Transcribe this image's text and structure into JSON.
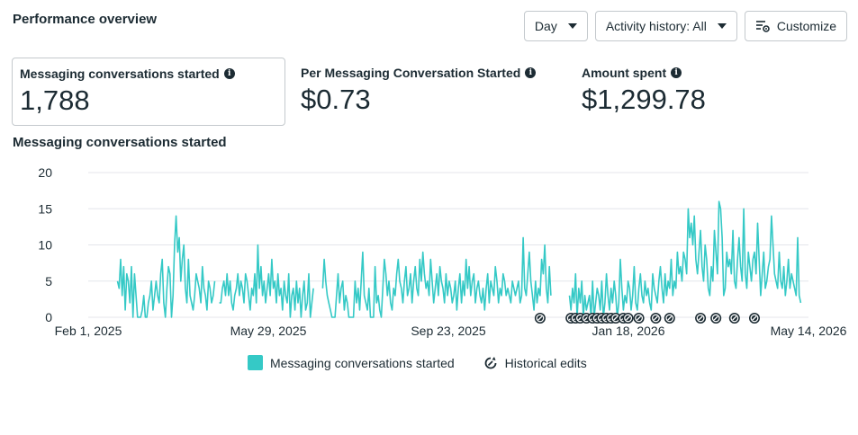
{
  "header": {
    "title": "Performance overview",
    "day_label": "Day",
    "activity_label": "Activity history: All",
    "customize_label": "Customize"
  },
  "metrics": [
    {
      "label": "Messaging conversations started",
      "value": "1,788"
    },
    {
      "label": "Per Messaging Conversation Started",
      "value": "$0.73"
    },
    {
      "label": "Amount spent",
      "value": "$1,299.78"
    }
  ],
  "chart_title": "Messaging conversations started",
  "legend": {
    "series_label": "Messaging conversations started",
    "edits_label": "Historical edits"
  },
  "colors": {
    "series": "#35c9c6",
    "grid": "#e4e6eb",
    "text": "#1c2b33"
  },
  "icons": {
    "info": "info-icon",
    "customize": "customize-sliders-icon",
    "historical_edit": "historical-edit-icon"
  },
  "chart_data": {
    "type": "line",
    "title": "Messaging conversations started",
    "xlabel": "",
    "ylabel": "",
    "x_start": "2025-02-01",
    "x_end": "2026-05-14",
    "x_ticks": [
      "Feb 1, 2025",
      "May 29, 2025",
      "Sep 23, 2025",
      "Jan 18, 2026",
      "May 14, 2026"
    ],
    "y_ticks": [
      0,
      5,
      10,
      15,
      20
    ],
    "ylim": [
      0,
      20
    ],
    "grid": true,
    "legend_position": "bottom",
    "series": [
      {
        "name": "Messaging conversations started",
        "segments": [
          {
            "start": "2025-02-20",
            "values": [
              5,
              4,
              8,
              3,
              7,
              1,
              6,
              5,
              2,
              7,
              0,
              6,
              3,
              0,
              0,
              0,
              1,
              3,
              0,
              0,
              2,
              3,
              5,
              1,
              3,
              5,
              3,
              2,
              6,
              8,
              2,
              0,
              4,
              7,
              6,
              0,
              3,
              10,
              14,
              9,
              11,
              5,
              8,
              10,
              4,
              2,
              8,
              3,
              2,
              1,
              3,
              6,
              5,
              4,
              2,
              7,
              4,
              3,
              1,
              5,
              4,
              2,
              3,
              5
            ]
          },
          {
            "start": "2025-04-27",
            "values": [
              2,
              2,
              4,
              5,
              3,
              6,
              3,
              5,
              2,
              1,
              3,
              4,
              6,
              3,
              5,
              4,
              2,
              6,
              5,
              3,
              1,
              4,
              3,
              6,
              2,
              10,
              4,
              7,
              3,
              5,
              2,
              4,
              6,
              3,
              8,
              4,
              5,
              2,
              6,
              3,
              4,
              1,
              5,
              3,
              2,
              6,
              0,
              3,
              4,
              1,
              5,
              2,
              4,
              0,
              3,
              5,
              1,
              2,
              6,
              0,
              2,
              4
            ]
          },
          {
            "start": "2025-07-03",
            "values": [
              4,
              8,
              5,
              3,
              2,
              1,
              0,
              0,
              0,
              3,
              6,
              2,
              4,
              5,
              1,
              3,
              2,
              0,
              0,
              0,
              0,
              5,
              2,
              4,
              1,
              5,
              9,
              3,
              2,
              1,
              4,
              0,
              0,
              0,
              7,
              2,
              3,
              1,
              0,
              4,
              8,
              6,
              3,
              5,
              2,
              1,
              4,
              3,
              6,
              8,
              5,
              4,
              2,
              5,
              7,
              3,
              4,
              6,
              2,
              5,
              7,
              4,
              3,
              8,
              5,
              9,
              6,
              4,
              5,
              3,
              8,
              5,
              2,
              4,
              6,
              3,
              7,
              5,
              4,
              2,
              6,
              3,
              5,
              4,
              2,
              3,
              5,
              1,
              4,
              6,
              2,
              5,
              3,
              8,
              4,
              7,
              3,
              5,
              6,
              2,
              4,
              5,
              3,
              2,
              4,
              1,
              4,
              6,
              2,
              5,
              4,
              3,
              7,
              5,
              2,
              4,
              3,
              6,
              5,
              3,
              4,
              3,
              2,
              5,
              4,
              3,
              4,
              5,
              2,
              3,
              11,
              4,
              3,
              6,
              9,
              5,
              3,
              1,
              5,
              2,
              4,
              3,
              8,
              6,
              10,
              4,
              2,
              7,
              3
            ]
          },
          {
            "start": "2025-12-10",
            "values": [
              3,
              1,
              4,
              2,
              6,
              0,
              4,
              2,
              5,
              0,
              3,
              1,
              2,
              3,
              0,
              5,
              0,
              2,
              4,
              3,
              1,
              5,
              0,
              2,
              6,
              3,
              1,
              4,
              2,
              5,
              3,
              0,
              2,
              8,
              4,
              1,
              3,
              2,
              5,
              4,
              1,
              3,
              7,
              2,
              1,
              4,
              6,
              3,
              2,
              5,
              3,
              4,
              2,
              1,
              6,
              4,
              3,
              2,
              5,
              7,
              4,
              2,
              6,
              3,
              5,
              4,
              8,
              3,
              5,
              4,
              9,
              6,
              7,
              5,
              9,
              8,
              6,
              15,
              11,
              13,
              10,
              14,
              8,
              6,
              9,
              12,
              7,
              5,
              10,
              8,
              4,
              3,
              7,
              5,
              12,
              9,
              6,
              16,
              15,
              11,
              3,
              4,
              9,
              7,
              8,
              6,
              12,
              5,
              4,
              8,
              11,
              7,
              5,
              15,
              6,
              4,
              9,
              7,
              5,
              8,
              9,
              6,
              13,
              8,
              3,
              6,
              9,
              4,
              5,
              7,
              8,
              14,
              10,
              6,
              5,
              4,
              9,
              5,
              4,
              7,
              3,
              5,
              8,
              4,
              6,
              5,
              4,
              3,
              11,
              3,
              2
            ]
          }
        ]
      }
    ],
    "historical_edit_dates": [
      "2025-11-21",
      "2025-12-11",
      "2025-12-14",
      "2025-12-17",
      "2025-12-21",
      "2025-12-25",
      "2025-12-28",
      "2025-12-31",
      "2026-01-03",
      "2026-01-06",
      "2026-01-09",
      "2026-01-14",
      "2026-01-17",
      "2026-01-24",
      "2026-02-04",
      "2026-02-13",
      "2026-03-05",
      "2026-03-15",
      "2026-03-27",
      "2026-04-09"
    ]
  }
}
